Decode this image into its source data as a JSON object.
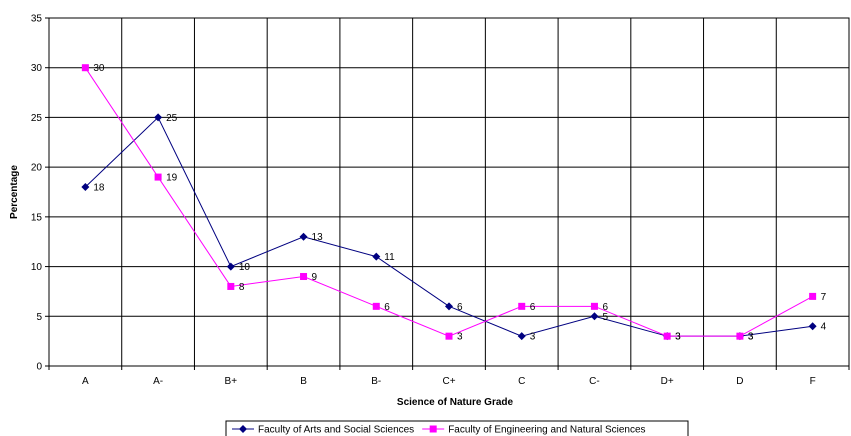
{
  "chart_data": {
    "type": "line",
    "categories": [
      "A",
      "A-",
      "B+",
      "B",
      "B-",
      "C+",
      "C",
      "C-",
      "D+",
      "D",
      "F"
    ],
    "xlabel": "Science of Nature Grade",
    "ylabel": "Percentage",
    "ylim": [
      0,
      35
    ],
    "yticks": [
      0,
      5,
      10,
      15,
      20,
      25,
      30,
      35
    ],
    "grid": true,
    "legend_position": "bottom",
    "series": [
      {
        "name": "Faculty of Arts and Social Sciences",
        "values": [
          18,
          25,
          10,
          13,
          11,
          6,
          3,
          5,
          3,
          3,
          4
        ],
        "color": "#000080",
        "marker": "diamond"
      },
      {
        "name": "Faculty of Engineering and Natural Sciences",
        "values": [
          30,
          19,
          8,
          9,
          6,
          3,
          6,
          6,
          3,
          3,
          7
        ],
        "color": "#ff00ff",
        "marker": "square"
      }
    ]
  }
}
